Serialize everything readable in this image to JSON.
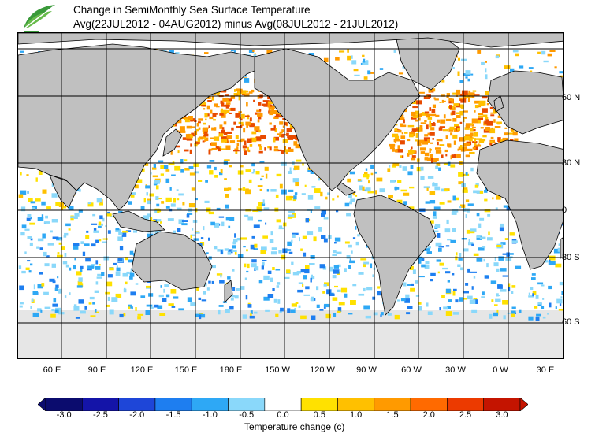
{
  "title": {
    "line1": "Change in SemiMonthly Sea Surface Temperature",
    "line2": "Avg(22JUL2012 - 04AUG2012) minus Avg(08JUL2012 - 21JUL2012)"
  },
  "logo": {
    "icon": "leaf-logo-icon",
    "color": "#3a9a3a"
  },
  "axes": {
    "lat_labels": [
      "60 N",
      "30 N",
      "0",
      "30 S",
      "60 S"
    ],
    "lon_labels": [
      "60 E",
      "90 E",
      "120 E",
      "150 E",
      "180 E",
      "150 W",
      "120 W",
      "90 W",
      "60 W",
      "30 W",
      "0 W",
      "30 E"
    ]
  },
  "legend": {
    "ticks": [
      "-3.0",
      "-2.5",
      "-2.0",
      "-1.5",
      "-1.0",
      "-0.5",
      "0.0",
      "0.5",
      "1.0",
      "1.5",
      "2.0",
      "2.5",
      "3.0"
    ],
    "colors": [
      "#0b0c6e",
      "#1414a8",
      "#1e46d8",
      "#1e7ef0",
      "#2ea8f5",
      "#8ad8fa",
      "#ffffff",
      "#ffe100",
      "#ffc000",
      "#ff9a00",
      "#ff6a00",
      "#ec3a00",
      "#c41400"
    ],
    "label": "Temperature change  (c)"
  },
  "colors": {
    "land": "#c0c0c0",
    "ice": "#e6e6e6",
    "warm": "#ff9a00",
    "hot": "#e84a00",
    "cool": "#8ad8fa",
    "cold": "#2ea8f5"
  }
}
